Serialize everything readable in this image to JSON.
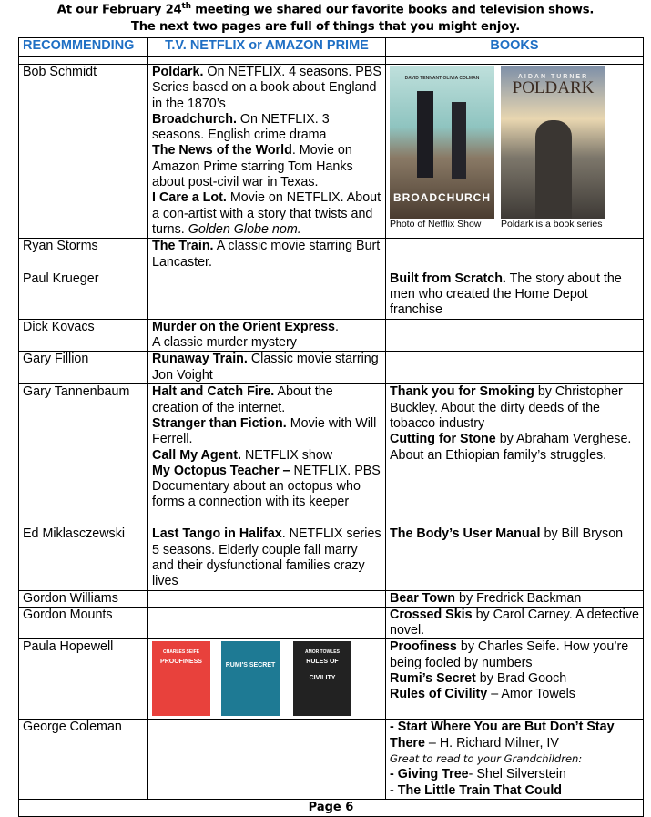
{
  "header": {
    "line1_pre": "At our February 24",
    "line1_sup": "th",
    "line1_post": " meeting we shared our favorite books and television shows.",
    "line2": "The next two pages are full of things that you might enjoy."
  },
  "columns": [
    "RECOMMENDING",
    "T.V. NETFLIX or AMAZON PRIME",
    "BOOKS"
  ],
  "colors": {
    "header_text": "#1f6fc4"
  },
  "images": {
    "broadchurch": {
      "title": "BROADCHURCH",
      "actors": "DAVID TENNANT   OLIVIA COLMAN",
      "caption": "Photo of Netflix Show"
    },
    "poldark": {
      "title": "POLDARK",
      "actor": "AIDAN TURNER",
      "caption": "Poldark is a book series"
    },
    "books": [
      {
        "title": "PROOFINESS",
        "author": "CHARLES SEIFE",
        "color": "#e8413c"
      },
      {
        "title": "RUMI'S SECRET",
        "color": "#1e7a94"
      },
      {
        "title": "RULES OF CIVILITY",
        "author": "AMOR TOWLES",
        "color": "#222222"
      }
    ]
  },
  "rows": [
    {
      "name": "Bob Schmidt",
      "tv": [
        [
          {
            "b": "Poldark."
          },
          {
            "t": "  On NETFLIX. 4 seasons. PBS Series based on a book about England in the 1870’s"
          }
        ],
        [
          {
            "b": "Broadchurch."
          },
          {
            "t": " On NETFLIX. 3 seasons.  English crime drama"
          }
        ],
        [
          {
            "b": "The News of the World"
          },
          {
            "t": ".  Movie on Amazon Prime starring Tom Hanks about post-civil war in Texas."
          }
        ],
        [
          {
            "b": "I Care a Lot."
          },
          {
            "t": "  Movie on NETFLIX. About a con-artist with a story that twists and turns. "
          },
          {
            "i": "Golden Globe nom."
          }
        ]
      ],
      "books": [],
      "h": 191
    },
    {
      "name": "Ryan Storms",
      "tv": [
        [
          {
            "b": "The Train."
          },
          {
            "t": " A classic movie starring Burt Lancaster."
          }
        ]
      ],
      "books": [],
      "h": 35
    },
    {
      "name": "Paul Krueger",
      "tv": [],
      "books": [
        [
          {
            "b": "Built from Scratch."
          },
          {
            "t": "  The story about the men who created the Home Depot franchise"
          }
        ]
      ],
      "h": 52
    },
    {
      "name": "Dick Kovacs",
      "tv": [
        [
          {
            "b": "Murder on the Orient Express"
          },
          {
            "t": "."
          }
        ],
        [
          {
            "t": "A classic murder mystery"
          }
        ]
      ],
      "books": [],
      "h": 35
    },
    {
      "name": "Gary Fillion",
      "tv": [
        [
          {
            "b": "Runaway Train."
          },
          {
            "t": "  Classic movie starring Jon Voight"
          }
        ]
      ],
      "books": [],
      "h": 36
    },
    {
      "name": "Gary Tannenbaum",
      "tv": [
        [
          {
            "b": "Halt and Catch Fire."
          },
          {
            "t": "  About the creation of the internet."
          }
        ],
        [
          {
            "b": "Stranger than Fiction."
          },
          {
            "t": "  Movie with Will Ferrell."
          }
        ],
        [
          {
            "b": "Call My Agent."
          },
          {
            "t": "  NETFLIX show"
          }
        ],
        [
          {
            "b": "My Octopus Teacher –"
          },
          {
            "t": " NETFLIX. PBS Documentary about an octopus who forms a connection with its keeper"
          }
        ]
      ],
      "books": [
        [
          {
            "b": "Thank you for Smoking"
          },
          {
            "t": " by Christopher Buckley. About the dirty deeds of the tobacco industry"
          }
        ],
        [
          {
            "b": "Cutting for Stone"
          },
          {
            "t": " by Abraham Verghese.  About an Ethiopian family’s struggles."
          }
        ]
      ],
      "h": 156
    },
    {
      "name": "Ed Miklasczewski",
      "tv": [
        [
          {
            "b": "Last Tango in Halifax"
          },
          {
            "t": ". NETFLIX series 5 seasons. Elderly couple fall marry and their dysfunctional families crazy lives"
          }
        ]
      ],
      "books": [
        [
          {
            "b": "The Body’s User Manual"
          },
          {
            "t": " by Bill Bryson"
          }
        ]
      ],
      "h": 70
    },
    {
      "name": "Gordon Williams",
      "tv": [],
      "books": [
        [
          {
            "b": "Bear Town"
          },
          {
            "t": " by Fredrick Backman"
          }
        ]
      ],
      "h": 18
    },
    {
      "name": "Gordon Mounts",
      "tv": [],
      "books": [
        [
          {
            "b": "Crossed Skis"
          },
          {
            "t": " by Carol Carney. A detective novel."
          }
        ]
      ],
      "h": 34
    },
    {
      "name": "Paula Hopewell",
      "tv": [],
      "books": [
        [
          {
            "b": "Proofiness"
          },
          {
            "t": " by Charles Seife. How you’re being fooled by numbers"
          }
        ],
        [
          {
            "b": "Rumi’s Secret"
          },
          {
            "t": " by Brad Gooch"
          }
        ],
        [
          {
            "b": "Rules of Civility"
          },
          {
            "t": " – Amor Towels"
          }
        ]
      ],
      "h": 88
    },
    {
      "name": "George Coleman",
      "tv": [],
      "books": [
        [
          {
            "b": "- Start Where You are But Don’t Stay There"
          },
          {
            "t": " – H. Richard Milner, IV"
          }
        ],
        [
          {
            "ic": "Great to read to your Grandchildren:"
          }
        ],
        [
          {
            "b": "- Giving Tree"
          },
          {
            "t": "- Shel Silverstein"
          }
        ],
        [
          {
            "b": "- The Little Train That Could"
          }
        ]
      ],
      "h": 88
    }
  ],
  "footer": {
    "page": "Page 6"
  }
}
